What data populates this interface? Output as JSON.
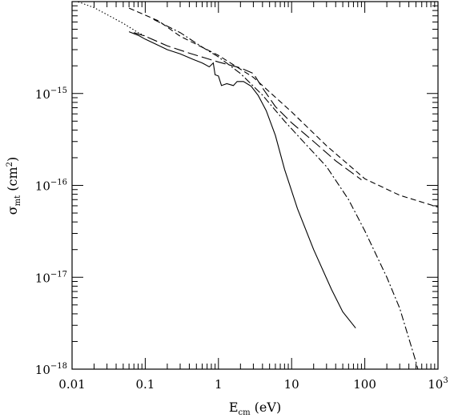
{
  "chart_data": {
    "type": "line",
    "title": "",
    "xlabel": {
      "main": "E",
      "sub": "cm",
      "rest": " (eV)"
    },
    "ylabel": {
      "main": "σ",
      "sub": "mt",
      "rest": " (cm",
      "sup": "2",
      "end": ")"
    },
    "x_scale": "log",
    "y_scale": "log",
    "xlim": [
      0.01,
      1000
    ],
    "ylim": [
      1e-18,
      1e-14
    ],
    "x_ticks": [
      {
        "value": 0.01,
        "label": "0.01"
      },
      {
        "value": 0.1,
        "label": "0.1"
      },
      {
        "value": 1,
        "label": "1"
      },
      {
        "value": 10,
        "label": "10"
      },
      {
        "value": 100,
        "label": "100"
      },
      {
        "value": 1000,
        "label": "10",
        "sup": "3"
      }
    ],
    "y_ticks": [
      {
        "value": 1e-18,
        "base": "10",
        "exp": "−18"
      },
      {
        "value": 1e-17,
        "base": "10",
        "exp": "−17"
      },
      {
        "value": 1e-16,
        "base": "10",
        "exp": "−16"
      },
      {
        "value": 1e-15,
        "base": "10",
        "exp": "−15"
      }
    ],
    "grid": false,
    "legend": "none",
    "series": [
      {
        "style": "solid",
        "points": [
          [
            0.06,
            4.7e-15
          ],
          [
            0.08,
            4.3e-15
          ],
          [
            0.1,
            3.9e-15
          ],
          [
            0.15,
            3.35e-15
          ],
          [
            0.2,
            3e-15
          ],
          [
            0.3,
            2.7e-15
          ],
          [
            0.45,
            2.35e-15
          ],
          [
            0.6,
            2.15e-15
          ],
          [
            0.75,
            1.95e-15
          ],
          [
            0.85,
            2.15e-15
          ],
          [
            0.9,
            1.6e-15
          ],
          [
            1.0,
            1.55e-15
          ],
          [
            1.1,
            1.22e-15
          ],
          [
            1.3,
            1.28e-15
          ],
          [
            1.6,
            1.22e-15
          ],
          [
            1.8,
            1.35e-15
          ],
          [
            2.2,
            1.35e-15
          ],
          [
            2.8,
            1.2e-15
          ],
          [
            3.5,
            9.5e-16
          ],
          [
            4.5,
            6.5e-16
          ],
          [
            6,
            3.5e-16
          ],
          [
            8,
            1.5e-16
          ],
          [
            12,
            5.6e-17
          ],
          [
            20,
            2e-17
          ],
          [
            35,
            7.4e-18
          ],
          [
            50,
            4.2e-18
          ],
          [
            75,
            2.8e-18
          ]
        ]
      },
      {
        "style": "long-dash",
        "points": [
          [
            0.07,
            4.6e-15
          ],
          [
            0.1,
            4.2e-15
          ],
          [
            0.2,
            3.3e-15
          ],
          [
            0.4,
            2.75e-15
          ],
          [
            1.0,
            2.2e-15
          ],
          [
            2.0,
            1.9e-15
          ],
          [
            3.0,
            1.65e-15
          ],
          [
            4.0,
            1.15e-15
          ],
          [
            6,
            7.2e-16
          ],
          [
            10,
            4.8e-16
          ],
          [
            20,
            3e-16
          ],
          [
            40,
            1.85e-16
          ],
          [
            90,
            1.15e-16
          ]
        ]
      },
      {
        "style": "dash-dot",
        "points": [
          [
            0.13,
            6.4e-15
          ],
          [
            0.3,
            4.6e-15
          ],
          [
            0.6,
            3.2e-15
          ],
          [
            1,
            2.5e-15
          ],
          [
            2,
            1.65e-15
          ],
          [
            4,
            9.6e-16
          ],
          [
            8,
            5e-16
          ],
          [
            15,
            2.9e-16
          ],
          [
            30,
            1.6e-16
          ],
          [
            60,
            7e-17
          ],
          [
            100,
            3.2e-17
          ],
          [
            200,
            1e-17
          ],
          [
            300,
            4.6e-18
          ],
          [
            500,
            1.2e-18
          ],
          [
            550,
            9e-19
          ]
        ]
      },
      {
        "style": "short-dash",
        "points": [
          [
            0.06,
            8.5e-15
          ],
          [
            0.15,
            6.2e-15
          ],
          [
            0.3,
            4.2e-15
          ],
          [
            1,
            2.6e-15
          ],
          [
            3,
            1.5e-15
          ],
          [
            10,
            6.3e-16
          ],
          [
            30,
            2.7e-16
          ],
          [
            100,
            1.18e-16
          ],
          [
            300,
            7.8e-17
          ],
          [
            1000,
            5.8e-17
          ]
        ]
      },
      {
        "style": "dotted",
        "points": [
          [
            0.01,
            1.05e-14
          ],
          [
            0.02,
            8.6e-15
          ],
          [
            0.05,
            5.8e-15
          ],
          [
            0.08,
            4.6e-15
          ],
          [
            0.1,
            4.2e-15
          ]
        ]
      }
    ]
  }
}
